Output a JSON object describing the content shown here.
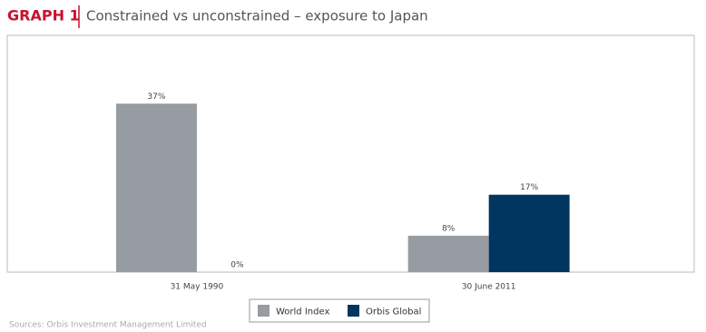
{
  "chart_data": {
    "type": "bar",
    "title_tag": "GRAPH 1",
    "title": "Constrained vs unconstrained – exposure to Japan",
    "categories": [
      "31 May 1990",
      "30 June 2011"
    ],
    "series": [
      {
        "name": "World Index",
        "color": "#969ca1",
        "values": [
          37,
          8
        ],
        "value_labels": [
          "37%",
          "8%"
        ]
      },
      {
        "name": "Orbis Global",
        "color": "#003660",
        "values": [
          0,
          17
        ],
        "value_labels": [
          "0%",
          "17%"
        ]
      }
    ],
    "ylim": [
      0,
      52
    ],
    "source": "Sources: Orbis Investment Management Limited"
  }
}
